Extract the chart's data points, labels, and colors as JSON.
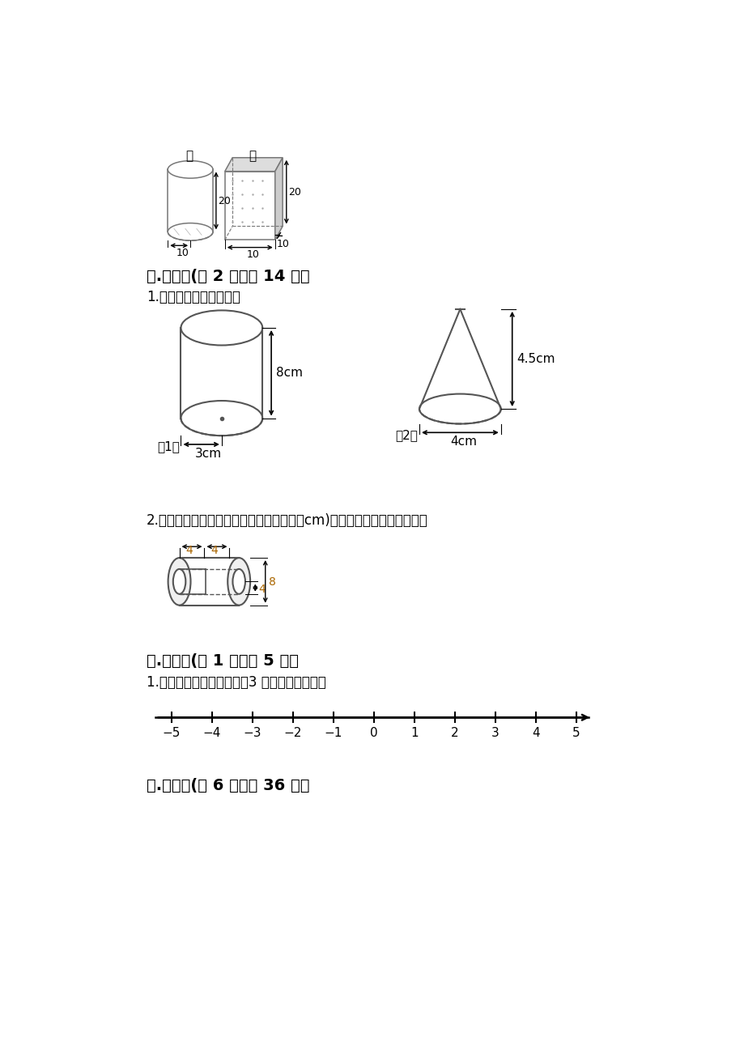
{
  "bg_color": "#ffffff",
  "section4_title": "四.计算题(共 2 题，共 14 分）",
  "section4_sub1": "1.计算下列图形的体积。",
  "section4_sub2": "2.如图是一种钢制的配件（图中数据单位：cm)请计算它的表面积和体积。",
  "section5_title": "五.作图题(共 1 题，共 5 分）",
  "section5_sub1": "1.在下面直线上，画出比－3 大的数所在区域。",
  "section6_title": "六.解答题(共 6 题，共 36 分）",
  "top_label_jia": "甲",
  "top_label_yi": "乙",
  "number_line_ticks": [
    -5,
    -4,
    -3,
    -2,
    -1,
    0,
    1,
    2,
    3,
    4,
    5
  ],
  "number_line_tick_labels": [
    "−5",
    "−4",
    "−3",
    "−2",
    "−1",
    "0",
    "1",
    "2",
    "3",
    "4",
    "5"
  ]
}
